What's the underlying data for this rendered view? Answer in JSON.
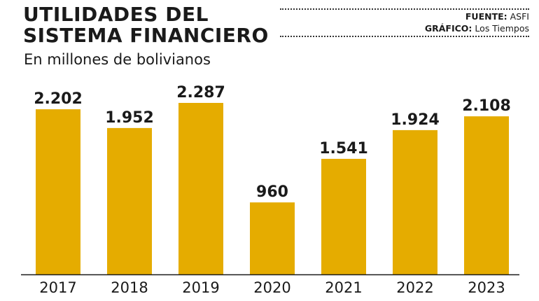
{
  "header": {
    "title_line1": "UTILIDADES DEL",
    "title_line2": "SISTEMA FINANCIERO",
    "source_label": "FUENTE:",
    "source_value": "ASFI",
    "graphic_label": "GRÁFICO:",
    "graphic_value": "Los Tiempos"
  },
  "chart_data": {
    "type": "bar",
    "title": "UTILIDADES DEL SISTEMA FINANCIERO",
    "subtitle": "En millones de bolivianos",
    "categories": [
      "2017",
      "2018",
      "2019",
      "2020",
      "2021",
      "2022",
      "2023"
    ],
    "values": [
      2202,
      1952,
      2287,
      960,
      1541,
      1924,
      2108
    ],
    "value_labels": [
      "2.202",
      "1.952",
      "2.287",
      "960",
      "1.541",
      "1.924",
      "2.108"
    ],
    "ylim": [
      0,
      2287
    ],
    "grid": false,
    "legend": "none",
    "bar_color": "#E5AC00",
    "baseline_color": "#1a1a1a"
  }
}
